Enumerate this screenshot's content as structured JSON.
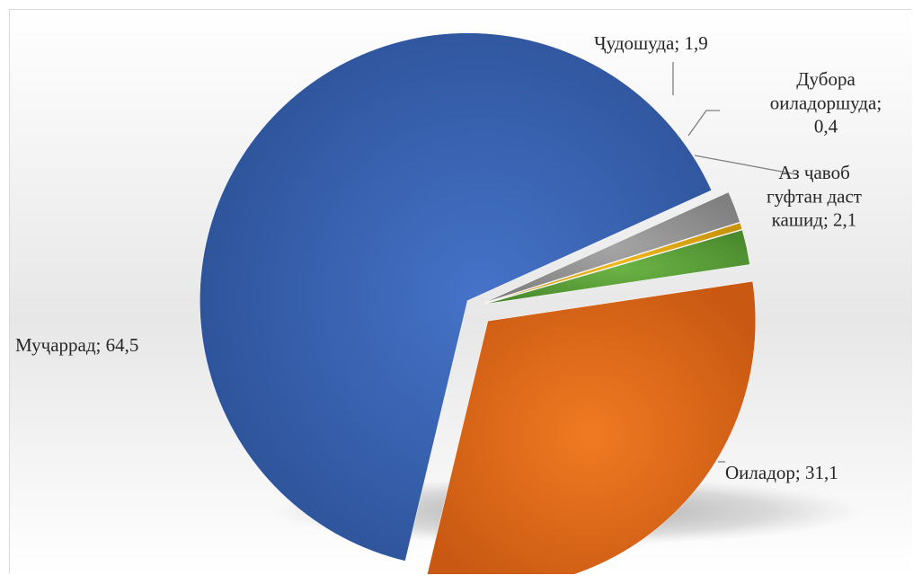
{
  "chart_data": {
    "type": "pie",
    "title": "",
    "legend": "none",
    "slices": [
      {
        "label": "Оиладор",
        "value": 31.1,
        "data_label": "Оиладор; 31,1",
        "color": "#e8691c"
      },
      {
        "label": "Мучаррад",
        "value": 64.5,
        "data_label": "Муҷаррад; 64,5",
        "color": "#3a63b8"
      },
      {
        "label": "Чудошуда",
        "value": 1.9,
        "data_label": "Ҷудошуда; 1,9",
        "color": "#9a9a9a"
      },
      {
        "label": "Дубора оиладоршуда",
        "value": 0.4,
        "data_label": "Дубора оиладоршуда; 0,4",
        "color": "#e6ac12"
      },
      {
        "label": "Аз чавоб гуфтан даст кашид",
        "value": 2.1,
        "data_label": "Аз ҷавоб гуфтан даст кашид; 2,1",
        "color": "#5fa33e"
      }
    ],
    "label_lines": {
      "Оиладор": [
        "Оиладор; 31,1"
      ],
      "Мучаррад": [
        "Муҷаррад; 64,5"
      ],
      "Чудошуда": [
        "Ҷудошуда; 1,9"
      ],
      "Дубора оиладоршуда": [
        "Дубора",
        "оиладоршуда;",
        "0,4"
      ],
      "Аз чавоб гуфтан даст кашид": [
        "Аз ҷавоб",
        "гуфтан даст",
        "кашид; 2,1"
      ]
    }
  }
}
